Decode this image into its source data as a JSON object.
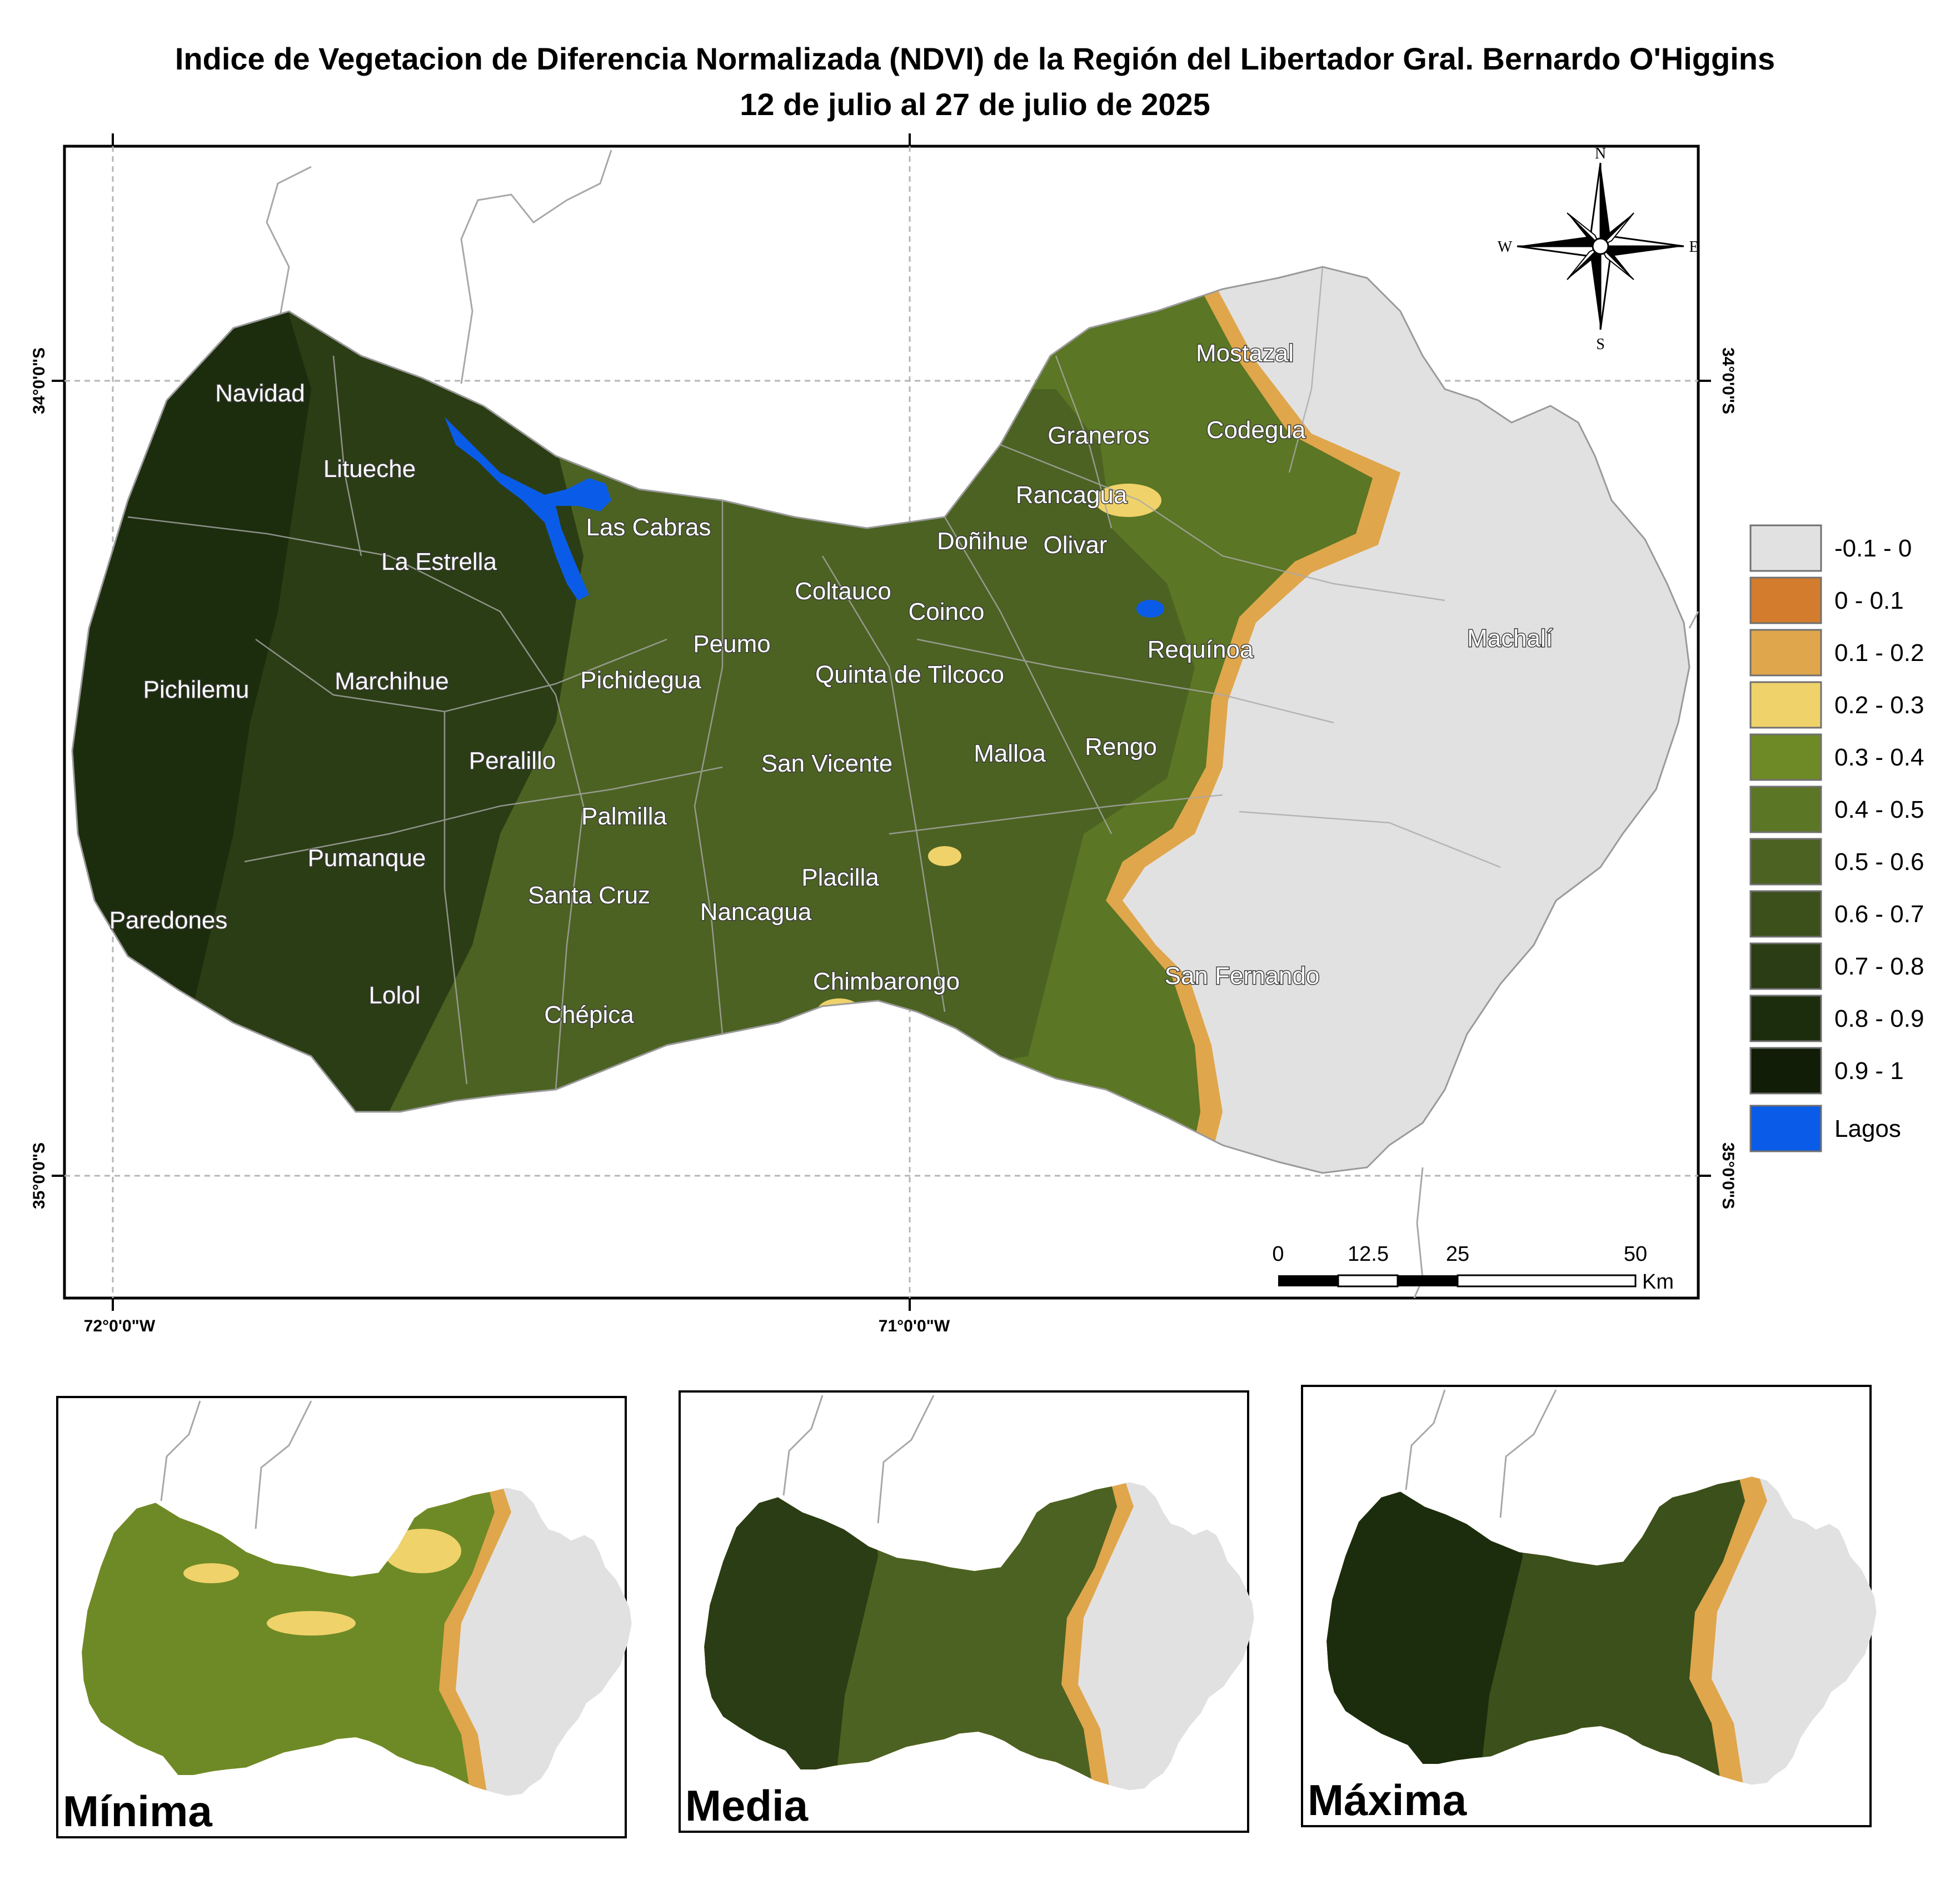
{
  "title": {
    "line1": "Indice de Vegetacion de Diferencia Normalizada (NDVI) de la Región del Libertador Gral. Bernardo O'Higgins",
    "line2": "12 de julio al 27 de julio de 2025"
  },
  "coords": {
    "lat_34": "34°0'0\"S",
    "lat_35": "35°0'0\"S",
    "lon_72": "72°0'0\"W",
    "lon_71": "71°0'0\"W"
  },
  "compass": {
    "n": "N",
    "s": "S",
    "e": "E",
    "w": "W"
  },
  "towns": {
    "navidad": "Navidad",
    "litueche": "Litueche",
    "la_estrella": "La Estrella",
    "las_cabras": "Las Cabras",
    "pichilemu": "Pichilemu",
    "marchihue": "Marchihue",
    "pichidegua": "Pichidegua",
    "peumo": "Peumo",
    "coltauco": "Coltauco",
    "coinco": "Coinco",
    "donihue": "Doñihue",
    "olivar": "Olivar",
    "rancagua": "Rancagua",
    "graneros": "Graneros",
    "codegua": "Codegua",
    "mostazal": "Mostazal",
    "machali": "Machalí",
    "requinoa": "Requínoa",
    "quinta": "Quinta de Tilcoco",
    "peralillo": "Peralillo",
    "san_vicente": "San Vicente",
    "malloa": "Malloa",
    "rengo": "Rengo",
    "palmilla": "Palmilla",
    "pumanque": "Pumanque",
    "paredones": "Paredones",
    "santa_cruz": "Santa Cruz",
    "placilla": "Placilla",
    "nancagua": "Nancagua",
    "lolol": "Lolol",
    "chepica": "Chépica",
    "chimbarongo": "Chimbarongo",
    "san_fernando": "San Fernando"
  },
  "legend": [
    {
      "label": "-0.1 - 0",
      "color": "#e1e1e1"
    },
    {
      "label": "0 - 0.1",
      "color": "#d37c2e"
    },
    {
      "label": "0.1 - 0.2",
      "color": "#e0a64c"
    },
    {
      "label": "0.2 - 0.3",
      "color": "#efd26a"
    },
    {
      "label": "0.3 - 0.4",
      "color": "#6e8a26"
    },
    {
      "label": "0.4 - 0.5",
      "color": "#5b7624"
    },
    {
      "label": "0.5 - 0.6",
      "color": "#4c6222"
    },
    {
      "label": "0.6 - 0.7",
      "color": "#3c501b"
    },
    {
      "label": "0.7 - 0.8",
      "color": "#2b3d14"
    },
    {
      "label": "0.8 - 0.9",
      "color": "#1c2d0d"
    },
    {
      "label": "0.9 - 1",
      "color": "#111d07"
    },
    {
      "label": "Lagos",
      "color": "#0a5ce8"
    }
  ],
  "scale": {
    "t0": "0",
    "t1": "12.5",
    "t2": "25",
    "t3": "50",
    "unit": "Km"
  },
  "insets": {
    "minima": "Mínima",
    "media": "Media",
    "maxima": "Máxima"
  }
}
